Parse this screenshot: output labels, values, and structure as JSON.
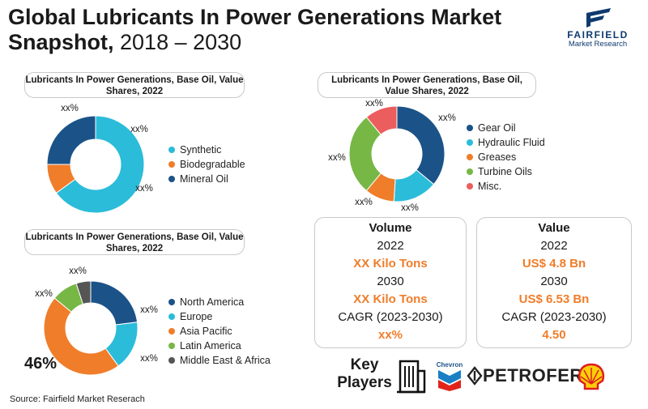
{
  "header": {
    "title_bold": "Global Lubricants In Power Generations Market Snapshot,",
    "title_light": " 2018 – 2030"
  },
  "logo": {
    "brand": "FAIRFIELD",
    "sub": "Market Research"
  },
  "colors": {
    "synthetic": "#2bbcd9",
    "biodegradable": "#f07d2a",
    "mineral": "#1b5388",
    "gear": "#1b5388",
    "hydraulic": "#2bbcd9",
    "greases": "#f07d2a",
    "turbine": "#77b745",
    "misc": "#ec5d5d",
    "na": "#1b5388",
    "eu": "#2bbcd9",
    "ap": "#f07d2a",
    "la": "#77b745",
    "mea": "#555555",
    "accent": "#f07d2a"
  },
  "panels": {
    "p1_title": "Lubricants In Power Generations, Base Oil, Value Shares, 2022",
    "p2_title": "Lubricants In Power Generations, Base Oil, Value Shares, 2022",
    "p3_title": "Lubricants In Power Generations, Base Oil, Value Shares, 2022"
  },
  "chart_data": [
    {
      "type": "pie",
      "title": "Lubricants In Power Generations, Base Oil, Value Shares, 2022",
      "categories": [
        "Synthetic",
        "Biodegradable",
        "Mineral Oil"
      ],
      "values": [
        65,
        10,
        25
      ],
      "data_labels": [
        "xx%",
        "xx%",
        "xx%"
      ],
      "legend": "right"
    },
    {
      "type": "pie",
      "title": "Lubricants In Power Generations, Base Oil, Value Shares, 2022",
      "categories": [
        "Gear Oil",
        "Hydraulic Fluid",
        "Greases",
        "Turbine Oils",
        "Misc."
      ],
      "values": [
        36,
        15,
        10,
        28,
        11
      ],
      "data_labels": [
        "xx%",
        "xx%",
        "xx%",
        "xx%",
        "xx%"
      ],
      "legend": "right"
    },
    {
      "type": "pie",
      "title": "Lubricants In Power Generations, Base Oil, Value Shares, 2022",
      "categories": [
        "North America",
        "Europe",
        "Asia Pacific",
        "Latin America",
        "Middle East & Africa"
      ],
      "values": [
        23,
        17,
        46,
        9,
        5
      ],
      "data_labels": [
        "xx%",
        "xx%",
        "46%",
        "xx%",
        "xx%"
      ],
      "legend": "right"
    }
  ],
  "volume": {
    "head": "Volume",
    "y1": "2022",
    "v1": "XX Kilo Tons",
    "y2": "2030",
    "v2": "XX Kilo Tons",
    "cagr_label": "CAGR (2023-2030)",
    "cagr": "xx%"
  },
  "value": {
    "head": "Value",
    "y1": "2022",
    "v1": "US$ 4.8 Bn",
    "y2": "2030",
    "v2": "US$ 6.53 Bn",
    "cagr_label": "CAGR (2023-2030)",
    "cagr": "4.50"
  },
  "players": {
    "label_1": "Key",
    "label_2": "Players",
    "chevron": "Chevron",
    "petrofer": "PETROFER"
  },
  "source": "Source: Fairfield Market Reserach"
}
